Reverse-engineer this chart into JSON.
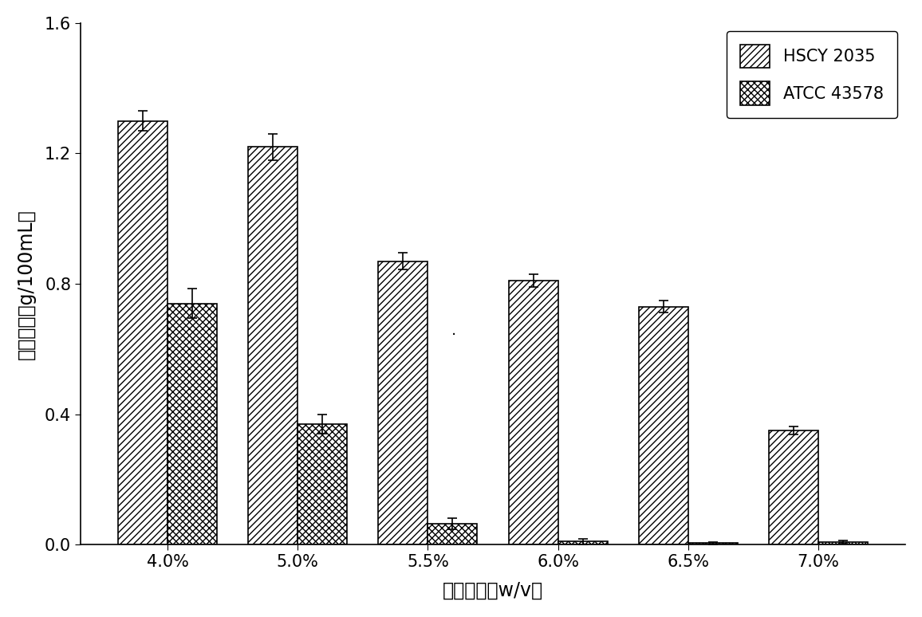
{
  "categories": [
    "4.0%",
    "5.0%",
    "5.5%",
    "6.0%",
    "6.5%",
    "7.0%"
  ],
  "hscy_values": [
    1.3,
    1.22,
    0.87,
    0.81,
    0.73,
    0.35
  ],
  "atcc_values": [
    0.74,
    0.37,
    0.065,
    0.01,
    0.005,
    0.008
  ],
  "hscy_errors": [
    0.03,
    0.04,
    0.025,
    0.02,
    0.018,
    0.012
  ],
  "atcc_errors": [
    0.045,
    0.03,
    0.018,
    0.008,
    0.003,
    0.005
  ],
  "xlabel": "乙酸含量（w/v）",
  "ylabel": "乳酸含量（g/100mL）",
  "ylim": [
    0,
    1.6
  ],
  "yticks": [
    0.0,
    0.4,
    0.8,
    1.2,
    1.6
  ],
  "legend_labels": [
    "HSCY 2035",
    "ATCC 43578"
  ],
  "hscy_hatch": "////",
  "atcc_hatch": "xxxx",
  "bar_width": 0.38,
  "background_color": "#ffffff",
  "axis_fontsize": 17,
  "tick_fontsize": 15,
  "legend_fontsize": 15
}
